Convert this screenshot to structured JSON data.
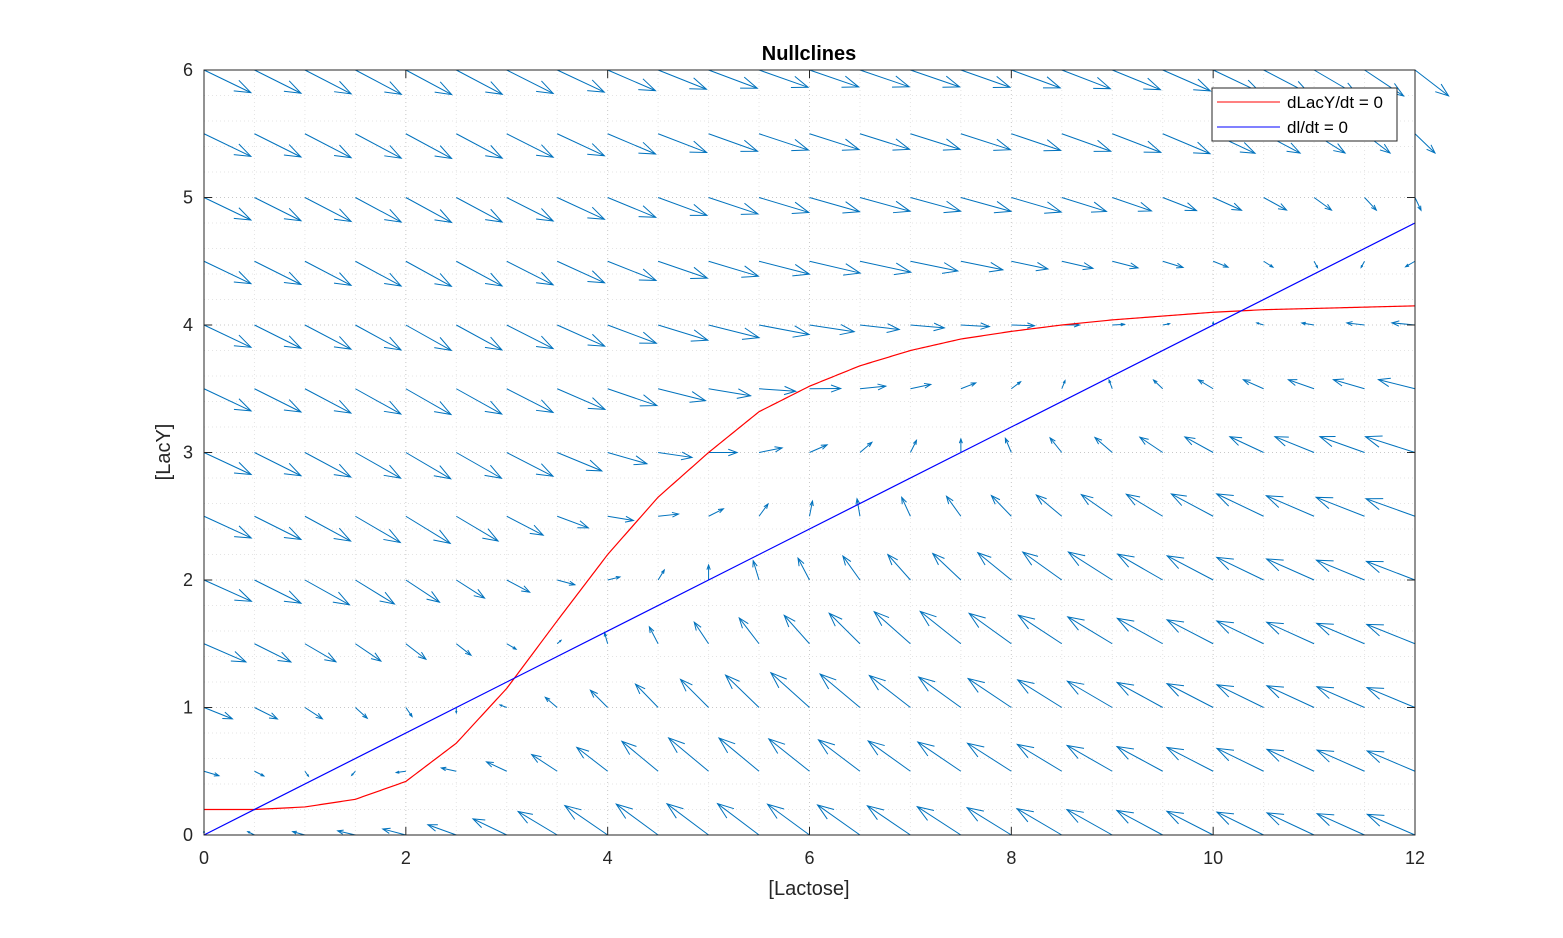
{
  "chart_data": {
    "type": "line",
    "title": "Nullclines",
    "xlabel": "[Lactose]",
    "ylabel": "[LacY]",
    "xlim": [
      0,
      12
    ],
    "ylim": [
      0,
      6
    ],
    "x_ticks": [
      0,
      2,
      4,
      6,
      8,
      10,
      12
    ],
    "y_ticks": [
      0,
      1,
      2,
      3,
      4,
      5,
      6
    ],
    "x_tick_labels": [
      "0",
      "2",
      "4",
      "6",
      "8",
      "10",
      "12"
    ],
    "y_tick_labels": [
      "0",
      "1",
      "2",
      "3",
      "4",
      "5",
      "6"
    ],
    "grid": "major and minor, dotted",
    "legend_position": "top-right",
    "series": [
      {
        "name": "dLacY/dt = 0",
        "color": "#ff0000",
        "x": [
          0,
          0.5,
          1,
          1.5,
          2,
          2.5,
          3,
          3.5,
          4,
          4.5,
          5,
          5.5,
          6,
          6.5,
          7,
          7.5,
          8,
          8.5,
          9,
          9.5,
          10,
          10.5,
          11,
          11.5,
          12
        ],
        "y": [
          0.2,
          0.2,
          0.22,
          0.28,
          0.42,
          0.72,
          1.15,
          1.68,
          2.2,
          2.65,
          3.0,
          3.32,
          3.52,
          3.68,
          3.8,
          3.89,
          3.95,
          4.0,
          4.04,
          4.07,
          4.1,
          4.12,
          4.13,
          4.14,
          4.15
        ]
      },
      {
        "name": "dl/dt = 0",
        "color": "#0000ff",
        "x": [
          0,
          12
        ],
        "y": [
          0,
          4.8
        ]
      }
    ],
    "vector_field": {
      "color": "#0072bd",
      "x_step": 0.5,
      "y_step": 0.5
    }
  }
}
